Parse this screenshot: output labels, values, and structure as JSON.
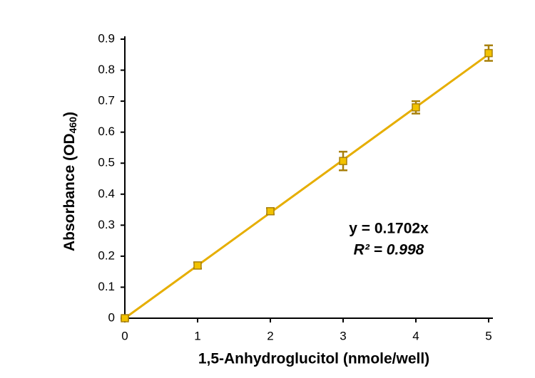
{
  "chart_data": {
    "type": "scatter",
    "xlabel": "1,5-Anhydroglucitol (nmole/well)",
    "ylabel": {
      "text": "Absorbance (OD",
      "subscript": "460",
      "suffix": ")"
    },
    "x": [
      0,
      1,
      2,
      3,
      4,
      5
    ],
    "series": [
      {
        "color": "#f2c200",
        "values": [
          0,
          0.17,
          0.345,
          0.507,
          0.68,
          0.855
        ],
        "errors": [
          0.005,
          0.01,
          0.01,
          0.03,
          0.02,
          0.025
        ]
      }
    ],
    "trendline": {
      "slope": 0.1702,
      "color": "#e6ae00"
    },
    "annotations": [
      "y = 0.1702x",
      "R² = 0.998"
    ],
    "xlim": [
      0,
      5
    ],
    "ylim": [
      0,
      0.9
    ],
    "xticks": [
      0,
      1,
      2,
      3,
      4,
      5
    ],
    "yticks": [
      0,
      0.1,
      0.2,
      0.3,
      0.4,
      0.5,
      0.6,
      0.7,
      0.8,
      0.9
    ]
  }
}
